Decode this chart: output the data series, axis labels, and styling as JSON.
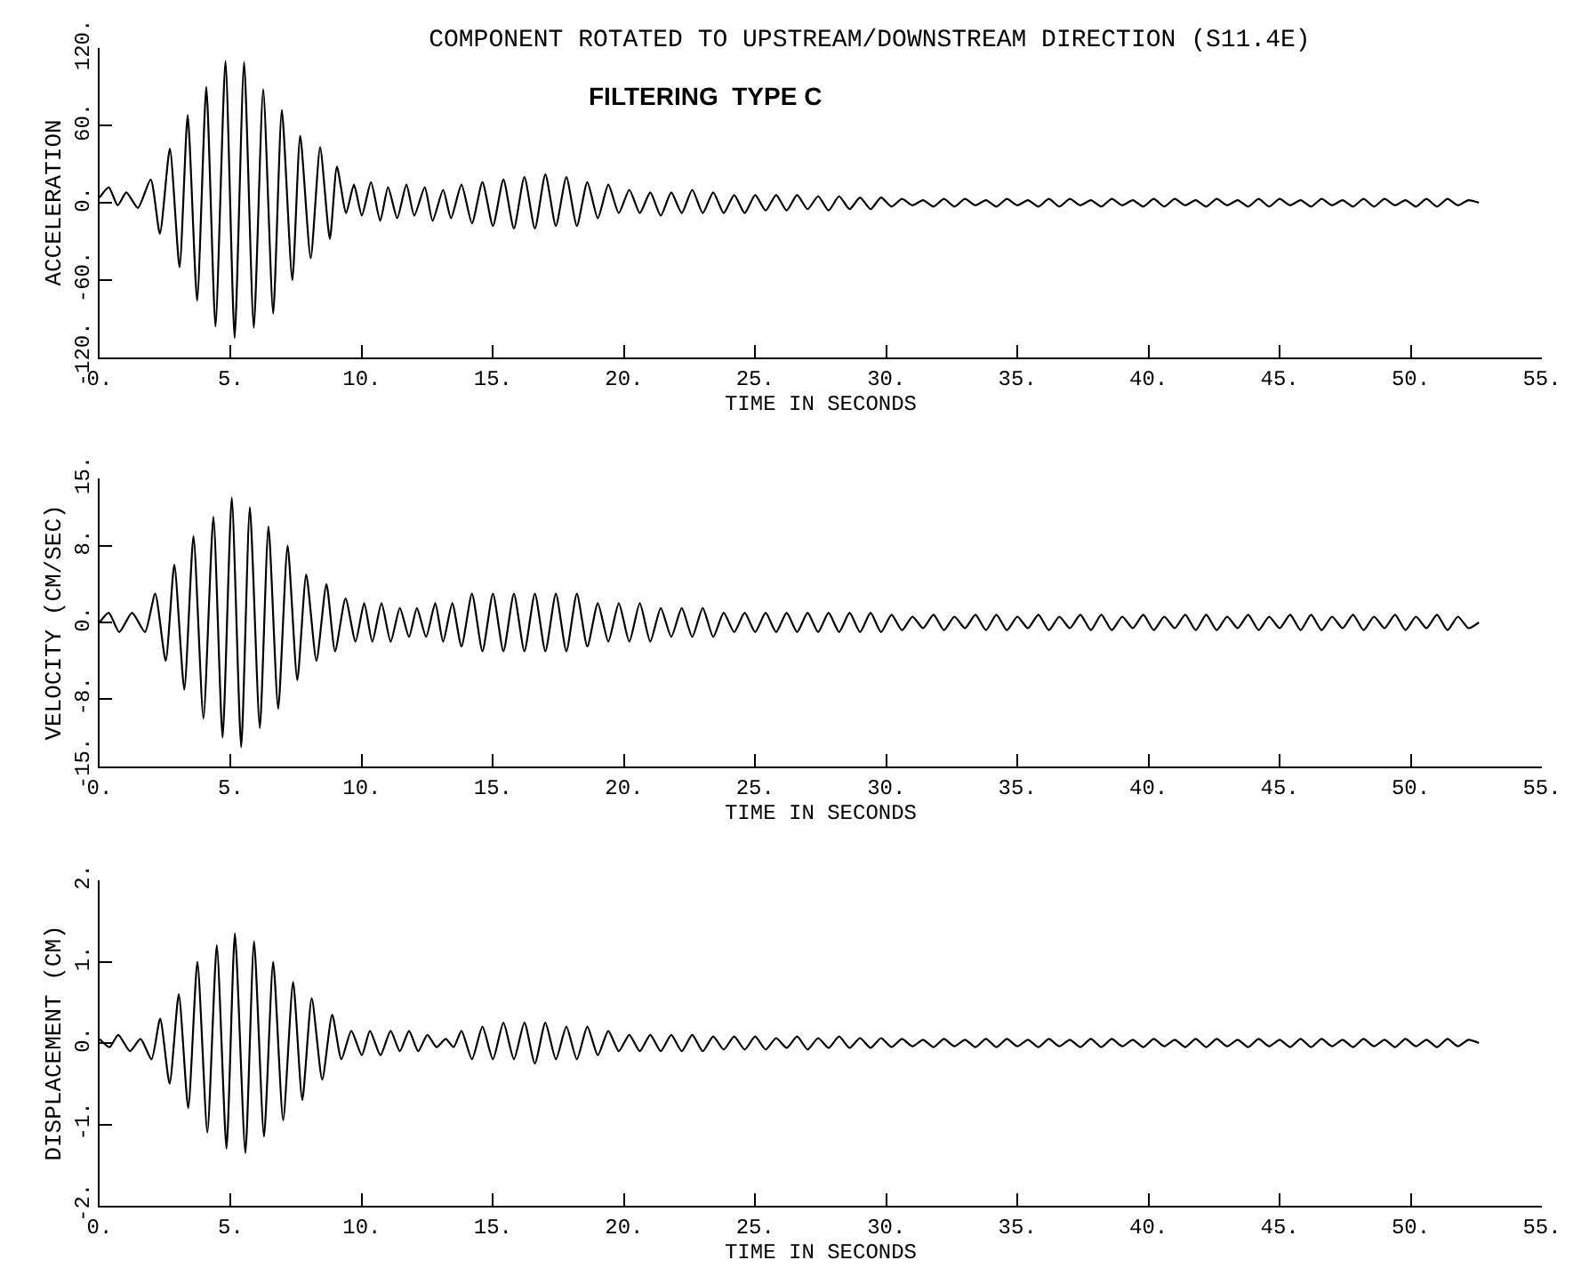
{
  "chart_data": [
    {
      "type": "line",
      "title": "COMPONENT ROTATED TO UPSTREAM/DOWNSTREAM DIRECTION (S11.4E)",
      "annotations": [
        "FILTERING  TYPE C"
      ],
      "xlabel": "TIME IN SECONDS",
      "ylabel": "ACCELERATION",
      "color": "#000000",
      "x": [
        0,
        0.35,
        0.69,
        1.02,
        1.46,
        1.95,
        2.3,
        2.68,
        3.05,
        3.36,
        3.72,
        4.07,
        4.42,
        4.8,
        5.15,
        5.51,
        5.88,
        6.24,
        6.62,
        6.95,
        7.35,
        7.65,
        8.05,
        8.41,
        8.78,
        9.05,
        9.4,
        9.7,
        10.0,
        10.35,
        10.7,
        11.0,
        11.35,
        11.7,
        12.0,
        12.4,
        12.7,
        13.1,
        13.4,
        13.8,
        14.2,
        14.6,
        15.0,
        15.4,
        15.8,
        16.2,
        16.6,
        17.0,
        17.4,
        17.8,
        18.2,
        18.6,
        19.0,
        19.4,
        19.8,
        20.2,
        20.6,
        21.0,
        21.4,
        21.8,
        22.2,
        22.6,
        23.0,
        23.4,
        23.8,
        24.2,
        24.6,
        25.0,
        25.4,
        25.8,
        26.2,
        26.6,
        27.0,
        27.4,
        27.8,
        28.2,
        28.6,
        29.0,
        29.4,
        29.8,
        30.2,
        30.6,
        31.0,
        31.4,
        31.8,
        32.2,
        32.6,
        33.0,
        33.4,
        33.8,
        34.2,
        34.6,
        35.0,
        35.4,
        35.8,
        36.2,
        36.6,
        37.0,
        37.4,
        37.8,
        38.2,
        38.6,
        39.0,
        39.4,
        39.8,
        40.2,
        40.6,
        41.0,
        41.4,
        41.8,
        42.2,
        42.6,
        43.0,
        43.4,
        43.8,
        44.2,
        44.6,
        45.0,
        45.4,
        45.8,
        46.2,
        46.6,
        47.0,
        47.4,
        47.8,
        48.2,
        48.6,
        49.0,
        49.4,
        49.8,
        50.2,
        50.6,
        51.0,
        51.4,
        51.8,
        52.2,
        52.6
      ],
      "values": [
        4,
        12,
        -2,
        8,
        -4,
        18,
        -24,
        42,
        -50,
        68,
        -76,
        90,
        -96,
        110,
        -105,
        109,
        -97,
        88,
        -86,
        72,
        -60,
        52,
        -43,
        43,
        -28,
        28,
        -8,
        14,
        -10,
        16,
        -14,
        12,
        -12,
        14,
        -10,
        12,
        -14,
        10,
        -12,
        14,
        -16,
        16,
        -18,
        18,
        -20,
        20,
        -20,
        22,
        -18,
        20,
        -18,
        16,
        -12,
        14,
        -8,
        10,
        -8,
        8,
        -10,
        8,
        -8,
        10,
        -8,
        8,
        -8,
        6,
        -8,
        6,
        -6,
        6,
        -6,
        6,
        -5,
        5,
        -6,
        5,
        -5,
        4,
        -5,
        4,
        -3,
        3,
        -2,
        2,
        -3,
        3,
        -3,
        3,
        -2,
        2,
        -3,
        3,
        -2,
        2,
        -3,
        3,
        -3,
        3,
        -2,
        2,
        -3,
        3,
        -2,
        2,
        -3,
        3,
        -3,
        3,
        -2,
        2,
        -3,
        3,
        -2,
        2,
        -3,
        3,
        -3,
        3,
        -2,
        2,
        -3,
        3,
        -2,
        2,
        -3,
        3,
        -3,
        3,
        -2,
        2,
        -3,
        3,
        -3,
        3,
        -2,
        2,
        0
      ],
      "xlim": [
        0,
        55
      ],
      "xticks": [
        {
          "value": 0,
          "label": "0."
        },
        {
          "value": 5,
          "label": "5."
        },
        {
          "value": 10,
          "label": "10."
        },
        {
          "value": 15,
          "label": "15."
        },
        {
          "value": 20,
          "label": "20."
        },
        {
          "value": 25,
          "label": "25."
        },
        {
          "value": 30,
          "label": "30."
        },
        {
          "value": 35,
          "label": "35."
        },
        {
          "value": 40,
          "label": "40."
        },
        {
          "value": 45,
          "label": "45."
        },
        {
          "value": 50,
          "label": "50."
        },
        {
          "value": 55,
          "label": "55."
        }
      ],
      "ylim": [
        -120,
        120
      ],
      "yticks": [
        {
          "value": -120,
          "label": "-120."
        },
        {
          "value": -60,
          "label": "-60."
        },
        {
          "value": 0,
          "label": "0."
        },
        {
          "value": 60,
          "label": "60."
        },
        {
          "value": 120,
          "label": "120."
        }
      ]
    },
    {
      "type": "line",
      "xlabel": "TIME IN SECONDS",
      "ylabel": "VELOCITY (CM/SEC)",
      "color": "#000000",
      "x": [
        0,
        0.35,
        0.75,
        1.24,
        1.73,
        2.12,
        2.52,
        2.85,
        3.23,
        3.58,
        3.96,
        4.34,
        4.69,
        5.04,
        5.4,
        5.73,
        6.11,
        6.44,
        6.81,
        7.17,
        7.54,
        7.88,
        8.27,
        8.65,
        8.98,
        9.38,
        9.76,
        10.09,
        10.4,
        10.75,
        11.1,
        11.45,
        11.8,
        12.1,
        12.45,
        12.8,
        13.1,
        13.45,
        13.8,
        14.2,
        14.6,
        15.0,
        15.4,
        15.8,
        16.2,
        16.6,
        17.0,
        17.4,
        17.8,
        18.2,
        18.6,
        19.0,
        19.4,
        19.8,
        20.2,
        20.6,
        21.0,
        21.4,
        21.8,
        22.2,
        22.6,
        23.0,
        23.4,
        23.8,
        24.2,
        24.6,
        25.0,
        25.4,
        25.8,
        26.2,
        26.6,
        27.0,
        27.4,
        27.8,
        28.2,
        28.6,
        29.0,
        29.4,
        29.8,
        30.2,
        30.6,
        31.0,
        31.4,
        31.8,
        32.2,
        32.6,
        33.0,
        33.4,
        33.8,
        34.2,
        34.6,
        35.0,
        35.4,
        35.8,
        36.2,
        36.6,
        37.0,
        37.4,
        37.8,
        38.2,
        38.6,
        39.0,
        39.4,
        39.8,
        40.2,
        40.6,
        41.0,
        41.4,
        41.8,
        42.2,
        42.6,
        43.0,
        43.4,
        43.8,
        44.2,
        44.6,
        45.0,
        45.4,
        45.8,
        46.2,
        46.6,
        47.0,
        47.4,
        47.8,
        48.2,
        48.6,
        49.0,
        49.4,
        49.8,
        50.2,
        50.6,
        51.0,
        51.4,
        51.8,
        52.2,
        52.6
      ],
      "values": [
        0,
        1,
        -1,
        1,
        -1,
        3,
        -4,
        6,
        -7,
        9,
        -10,
        11,
        -12,
        13,
        -13,
        12,
        -11,
        10,
        -9,
        8,
        -6,
        5,
        -4,
        4,
        -3,
        2.5,
        -2,
        2,
        -2,
        2,
        -2,
        1.5,
        -1.5,
        1.5,
        -1.5,
        2,
        -2,
        2,
        -2.5,
        3,
        -3,
        3,
        -3,
        3,
        -3,
        3,
        -3,
        3,
        -3,
        3,
        -2.5,
        2,
        -2,
        2,
        -2,
        2,
        -2,
        1.5,
        -1.5,
        1.5,
        -1.5,
        1.5,
        -1.5,
        1,
        -1,
        1,
        -1,
        1,
        -1,
        1,
        -1,
        1,
        -1,
        1,
        -1,
        1,
        -1,
        1,
        -1,
        0.8,
        -0.8,
        0.6,
        -0.6,
        0.8,
        -0.8,
        0.6,
        -0.6,
        0.8,
        -0.8,
        0.8,
        -0.8,
        0.6,
        -0.6,
        0.8,
        -0.8,
        0.6,
        -0.6,
        0.8,
        -0.8,
        0.8,
        -0.8,
        0.6,
        -0.6,
        0.8,
        -0.8,
        0.6,
        -0.6,
        0.8,
        -0.8,
        0.8,
        -0.8,
        0.6,
        -0.6,
        0.8,
        -0.8,
        0.6,
        -0.6,
        0.8,
        -0.8,
        0.8,
        -0.8,
        0.6,
        -0.6,
        0.8,
        -0.8,
        0.6,
        -0.6,
        0.8,
        -0.8,
        0.6,
        -0.6,
        0.8,
        -0.8,
        0.6,
        -0.6,
        0
      ],
      "xlim": [
        0,
        55
      ],
      "xticks": [
        {
          "value": 0,
          "label": "0."
        },
        {
          "value": 5,
          "label": "5."
        },
        {
          "value": 10,
          "label": "10."
        },
        {
          "value": 15,
          "label": "15."
        },
        {
          "value": 20,
          "label": "20."
        },
        {
          "value": 25,
          "label": "25."
        },
        {
          "value": 30,
          "label": "30."
        },
        {
          "value": 35,
          "label": "35."
        },
        {
          "value": 40,
          "label": "40."
        },
        {
          "value": 45,
          "label": "45."
        },
        {
          "value": 50,
          "label": "50."
        },
        {
          "value": 55,
          "label": "55."
        }
      ],
      "ylim": [
        -15,
        15
      ],
      "yticks": [
        {
          "value": -15,
          "label": "-15."
        },
        {
          "value": -8,
          "label": "-8."
        },
        {
          "value": 0,
          "label": "0."
        },
        {
          "value": 8,
          "label": "8."
        },
        {
          "value": 15,
          "label": "15."
        }
      ]
    },
    {
      "type": "line",
      "xlabel": "TIME IN SECONDS",
      "ylabel": "DISPLACEMENT (CM)",
      "color": "#000000",
      "x": [
        0,
        0.38,
        0.71,
        1.16,
        1.56,
        1.98,
        2.31,
        2.67,
        3.02,
        3.38,
        3.73,
        4.11,
        4.47,
        4.84,
        5.16,
        5.56,
        5.89,
        6.27,
        6.62,
        7.0,
        7.38,
        7.73,
        8.09,
        8.49,
        8.87,
        9.22,
        9.6,
        10.0,
        10.31,
        10.71,
        11.1,
        11.45,
        11.8,
        12.15,
        12.5,
        12.85,
        13.2,
        13.5,
        13.8,
        14.2,
        14.6,
        15.0,
        15.4,
        15.8,
        16.2,
        16.6,
        17.0,
        17.4,
        17.8,
        18.2,
        18.6,
        19.0,
        19.4,
        19.8,
        20.2,
        20.6,
        21.0,
        21.4,
        21.8,
        22.2,
        22.6,
        23.0,
        23.4,
        23.8,
        24.2,
        24.6,
        25.0,
        25.4,
        25.8,
        26.2,
        26.6,
        27.0,
        27.4,
        27.8,
        28.2,
        28.6,
        29.0,
        29.4,
        29.8,
        30.2,
        30.6,
        31.0,
        31.4,
        31.8,
        32.2,
        32.6,
        33.0,
        33.4,
        33.8,
        34.2,
        34.6,
        35.0,
        35.4,
        35.8,
        36.2,
        36.6,
        37.0,
        37.4,
        37.8,
        38.2,
        38.6,
        39.0,
        39.4,
        39.8,
        40.2,
        40.6,
        41.0,
        41.4,
        41.8,
        42.2,
        42.6,
        43.0,
        43.4,
        43.8,
        44.2,
        44.6,
        45.0,
        45.4,
        45.8,
        46.2,
        46.6,
        47.0,
        47.4,
        47.8,
        48.2,
        48.6,
        49.0,
        49.4,
        49.8,
        50.2,
        50.6,
        51.0,
        51.4,
        51.8,
        52.2,
        52.6
      ],
      "values": [
        0.05,
        -0.05,
        0.1,
        -0.1,
        0.05,
        -0.2,
        0.3,
        -0.5,
        0.6,
        -0.8,
        1.0,
        -1.1,
        1.2,
        -1.3,
        1.35,
        -1.35,
        1.25,
        -1.15,
        1.0,
        -0.95,
        0.75,
        -0.7,
        0.55,
        -0.45,
        0.35,
        -0.2,
        0.15,
        -0.15,
        0.15,
        -0.15,
        0.15,
        -0.1,
        0.15,
        -0.1,
        0.1,
        -0.05,
        0.05,
        -0.05,
        0.15,
        -0.2,
        0.2,
        -0.2,
        0.25,
        -0.2,
        0.25,
        -0.25,
        0.25,
        -0.2,
        0.2,
        -0.2,
        0.2,
        -0.15,
        0.15,
        -0.1,
        0.1,
        -0.1,
        0.1,
        -0.1,
        0.1,
        -0.1,
        0.1,
        -0.1,
        0.08,
        -0.08,
        0.08,
        -0.08,
        0.08,
        -0.08,
        0.06,
        -0.06,
        0.08,
        -0.08,
        0.06,
        -0.06,
        0.08,
        -0.06,
        0.06,
        -0.06,
        0.06,
        -0.05,
        0.05,
        -0.04,
        0.04,
        -0.05,
        0.05,
        -0.04,
        0.04,
        -0.05,
        0.05,
        -0.05,
        0.05,
        -0.04,
        0.04,
        -0.05,
        0.05,
        -0.04,
        0.04,
        -0.05,
        0.05,
        -0.05,
        0.05,
        -0.04,
        0.04,
        -0.05,
        0.05,
        -0.04,
        0.04,
        -0.05,
        0.05,
        -0.05,
        0.05,
        -0.04,
        0.04,
        -0.05,
        0.05,
        -0.04,
        0.04,
        -0.05,
        0.05,
        -0.05,
        0.05,
        -0.04,
        0.04,
        -0.05,
        0.05,
        -0.04,
        0.04,
        -0.05,
        0.05,
        -0.04,
        0.04,
        -0.05,
        0.05,
        -0.04,
        0.04,
        0
      ],
      "xlim": [
        0,
        55
      ],
      "xticks": [
        {
          "value": 0,
          "label": "0."
        },
        {
          "value": 5,
          "label": "5."
        },
        {
          "value": 10,
          "label": "10."
        },
        {
          "value": 15,
          "label": "15."
        },
        {
          "value": 20,
          "label": "20."
        },
        {
          "value": 25,
          "label": "25."
        },
        {
          "value": 30,
          "label": "30."
        },
        {
          "value": 35,
          "label": "35."
        },
        {
          "value": 40,
          "label": "40."
        },
        {
          "value": 45,
          "label": "45."
        },
        {
          "value": 50,
          "label": "50."
        },
        {
          "value": 55,
          "label": "55."
        }
      ],
      "ylim": [
        -2,
        2
      ],
      "yticks": [
        {
          "value": -2,
          "label": "-2."
        },
        {
          "value": -1,
          "label": "-1."
        },
        {
          "value": 0,
          "label": "0."
        },
        {
          "value": 1,
          "label": "1."
        },
        {
          "value": 2,
          "label": "2."
        }
      ]
    }
  ]
}
